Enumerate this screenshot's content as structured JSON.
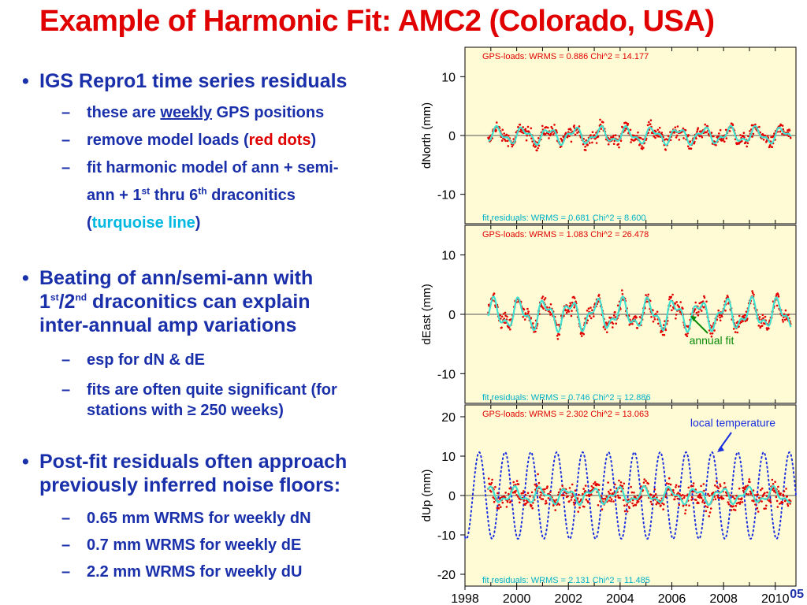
{
  "slide": {
    "title": "Example of Harmonic Fit:  AMC2 (Colorado, USA)",
    "page_number": "05"
  },
  "bullets": {
    "b1_text": "IGS Repro1 time series residuals",
    "b1_s1_pre": "these are ",
    "b1_s1_ul": "weekly",
    "b1_s1_post": " GPS positions",
    "b1_s2_pre": "remove model loads (",
    "b1_s2_red": "red dots",
    "b1_s2_post": ")",
    "b1_s3_line1": "fit harmonic model of ann + semi-",
    "b1_s3_a": "ann + 1",
    "b1_s3_sup1": "st",
    "b1_s3_b": " thru 6",
    "b1_s3_sup2": "th",
    "b1_s3_c": " draconitics",
    "b1_s3_open": "(",
    "b1_s3_turq": "turquoise line",
    "b1_s3_close": ")",
    "b2_line1": "Beating of ann/semi-ann with",
    "b2_a": "1",
    "b2_sup1": "st",
    "b2_b": "/2",
    "b2_sup2": "nd",
    "b2_c": " draconitics can explain",
    "b2_line3": "inter-annual amp variations",
    "b2_s1": "esp for dN & dE",
    "b2_s2_line1": "fits are often quite significant (for",
    "b2_s2_line2": "stations with ≥ 250 weeks)",
    "b3_line1": "Post-fit residuals often approach",
    "b3_line2": "previously inferred noise floors:",
    "b3_s1": "0.65 mm WRMS for weekly dN",
    "b3_s2": "0.7 mm WRMS for weekly dE",
    "b3_s3": "2.2 mm WRMS for weekly dU",
    "bullet_char": "•",
    "dash_char": "–"
  },
  "chart_data": [
    {
      "type": "line",
      "ylabel": "dNorth (mm)",
      "ylim": [
        -15,
        15
      ],
      "xlim": [
        1998,
        2010.8
      ],
      "yticks": [
        10,
        0,
        -10
      ],
      "xticks": [
        1998,
        2000,
        2002,
        2004,
        2006,
        2008,
        2010
      ],
      "top_label": "GPS-loads:   WRMS = 0.886  Chi^2 = 14.177",
      "bottom_label": "fit residuals:   WRMS = 0.681  Chi^2 = 8.600",
      "series": [
        {
          "role": "gps_loads_residuals",
          "color": "#e00000",
          "x_range": [
            1998.9,
            2010.6
          ],
          "scatter_mm": 1.0
        },
        {
          "role": "harmonic_fit",
          "color": "#40e0d0",
          "amplitude_mm": 1.1
        }
      ]
    },
    {
      "type": "line",
      "ylabel": "dEast (mm)",
      "ylim": [
        -15,
        15
      ],
      "xlim": [
        1998,
        2010.8
      ],
      "yticks": [
        10,
        0,
        -10
      ],
      "top_label": "GPS-loads:   WRMS = 1.083  Chi^2 = 26.478",
      "bottom_label": "fit residuals:   WRMS = 0.746  Chi^2 = 12.886",
      "annotation": "annual fit",
      "series": [
        {
          "role": "gps_loads_residuals",
          "color": "#e00000",
          "x_range": [
            1998.9,
            2010.6
          ],
          "scatter_mm": 1.2
        },
        {
          "role": "harmonic_fit",
          "color": "#40e0d0",
          "amplitude_mm": 2.0
        }
      ]
    },
    {
      "type": "line",
      "ylabel": "dUp (mm)",
      "ylim": [
        -23,
        23
      ],
      "xlim": [
        1998,
        2010.8
      ],
      "yticks": [
        20,
        10,
        0,
        -10,
        -20
      ],
      "xticks": [
        1998,
        2000,
        2002,
        2004,
        2006,
        2008,
        2010
      ],
      "top_label": "GPS-loads:   WRMS = 2.302  Chi^2 = 13.063",
      "bottom_label": "fit residuals:   WRMS = 2.131  Chi^2 = 11.485",
      "annotation": "local temperature",
      "series": [
        {
          "role": "gps_loads_residuals",
          "color": "#e00000",
          "x_range": [
            1998.9,
            2010.6
          ],
          "scatter_mm": 2.5
        },
        {
          "role": "harmonic_fit",
          "color": "#40e0d0",
          "amplitude_mm": 1.6
        },
        {
          "role": "local_temperature",
          "color": "#1a2fe0",
          "amplitude_mm": 11,
          "x_range": [
            1998,
            2010.8
          ]
        }
      ]
    }
  ],
  "colors": {
    "title": "#e00000",
    "bullet_text": "#1a2faa",
    "panel_bg": "#fffbd4",
    "gps_loads": "#e00000",
    "fit": "#40e0d0",
    "fit_label": "#00b0c8",
    "temperature": "#1a2fe0",
    "annual_label": "#0a8a0a"
  }
}
